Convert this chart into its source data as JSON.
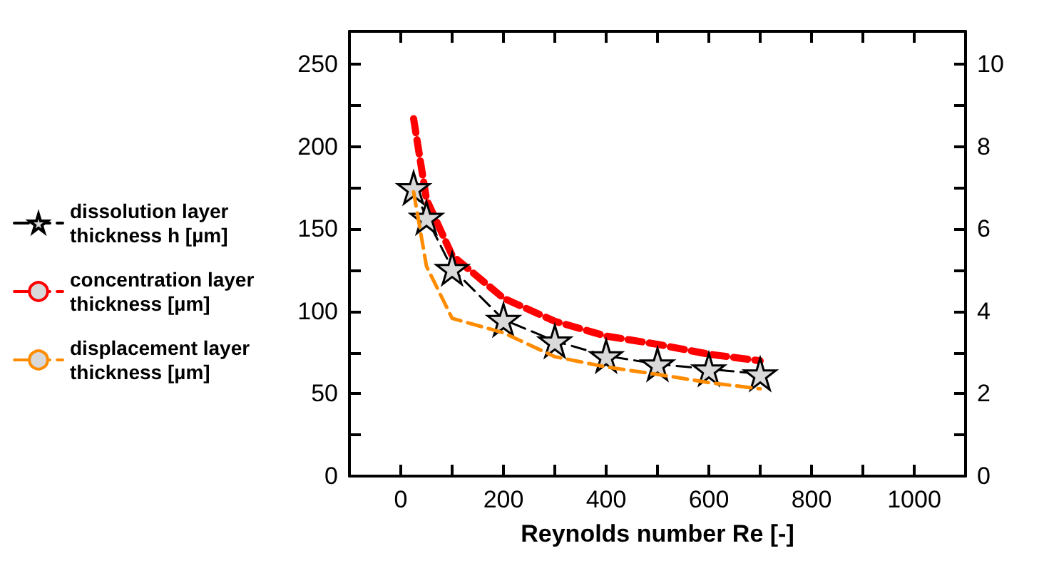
{
  "chart_data": {
    "type": "line",
    "xlabel": "Reynolds number Re [-]",
    "x": [
      25,
      50,
      100,
      200,
      300,
      400,
      500,
      600,
      700
    ],
    "series": [
      {
        "name": "dissolution layer thickness h [µm]",
        "color": "#000000",
        "marker": "star",
        "line_style": "dashed",
        "values": [
          175,
          157,
          126,
          95,
          82,
          73,
          68,
          65,
          62
        ]
      },
      {
        "name": "concentration layer thickness [µm]",
        "color": "#ff0000",
        "marker": "none",
        "line_style": "dashed",
        "values": [
          217,
          168,
          134,
          108,
          94,
          85,
          80,
          74,
          70
        ]
      },
      {
        "name": "displacement layer thickness [µm]",
        "color": "#ff8c00",
        "marker": "none",
        "line_style": "dashed",
        "axis": "y2",
        "values": [
          6.9,
          5.1,
          3.83,
          3.48,
          2.9,
          2.65,
          2.47,
          2.27,
          2.12
        ]
      }
    ],
    "xlim": [
      -100,
      1100
    ],
    "xticks": [
      0,
      {
        "value": 100,
        "label": null
      },
      200,
      {
        "value": 300,
        "label": null
      },
      400,
      {
        "value": 500,
        "label": null
      },
      600,
      {
        "value": 700,
        "label": null
      },
      800,
      {
        "value": 900,
        "label": null
      },
      1000
    ],
    "ylim": [
      0,
      270
    ],
    "yticks": [
      0,
      {
        "value": 25,
        "label": null
      },
      50,
      {
        "value": 75,
        "label": null
      },
      100,
      {
        "value": 125,
        "label": null
      },
      150,
      {
        "value": 175,
        "label": null
      },
      200,
      {
        "value": 225,
        "label": null
      },
      250
    ],
    "y2lim": [
      0,
      10.8
    ],
    "y2ticks": [
      0,
      {
        "value": 1,
        "label": null
      },
      2,
      {
        "value": 3,
        "label": null
      },
      4,
      {
        "value": 5,
        "label": null
      },
      6,
      {
        "value": 7,
        "label": null
      },
      8,
      {
        "value": 9,
        "label": null
      },
      10
    ],
    "grid": false,
    "legend": "left"
  }
}
